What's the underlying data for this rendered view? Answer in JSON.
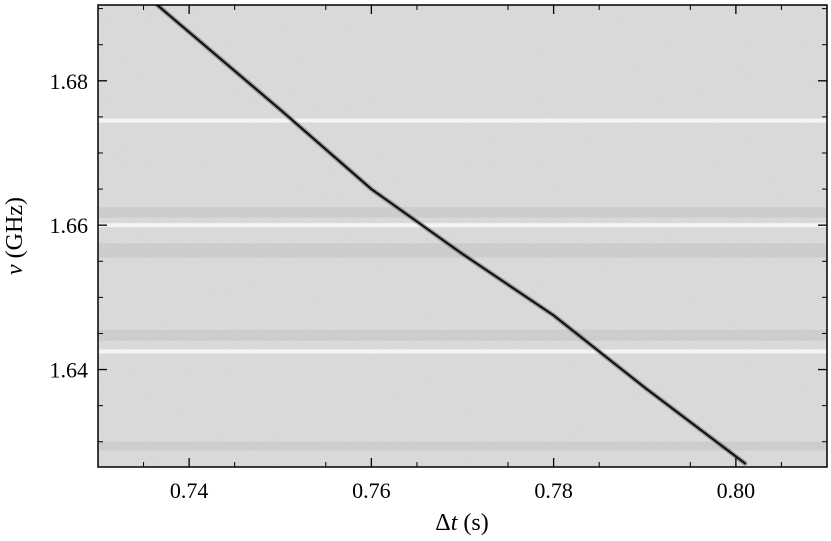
{
  "chart_data": {
    "type": "heatmap",
    "title": "",
    "colormap": "gray_r",
    "background_color": "#dcdcdc",
    "signal_color": "#111111",
    "xlabel": {
      "prefix": "Δ",
      "var": "t",
      "unit": " (s)"
    },
    "ylabel": {
      "var": "ν",
      "unit": " (GHz)"
    },
    "xlim": [
      0.73,
      0.81
    ],
    "ylim": [
      1.6265,
      1.6905
    ],
    "xticks": [
      0.74,
      0.76,
      0.78,
      0.8
    ],
    "xtick_labels": [
      "0.74",
      "0.76",
      "0.78",
      "0.80"
    ],
    "yticks": [
      1.64,
      1.66,
      1.68
    ],
    "ytick_labels": [
      "1.64",
      "1.66",
      "1.68"
    ],
    "dispersion_track": [
      {
        "t": 0.7365,
        "nu": 1.6905
      },
      {
        "t": 0.75,
        "nu": 1.676
      },
      {
        "t": 0.76,
        "nu": 1.665
      },
      {
        "t": 0.77,
        "nu": 1.656
      },
      {
        "t": 0.78,
        "nu": 1.6475
      },
      {
        "t": 0.79,
        "nu": 1.6375
      },
      {
        "t": 0.801,
        "nu": 1.627
      }
    ],
    "flagged_bands_nu": [
      1.66,
      1.6425,
      1.6745
    ],
    "noisy_bands_nu": [
      [
        1.661,
        1.6625
      ],
      [
        1.6555,
        1.6575
      ],
      [
        1.644,
        1.6455
      ],
      [
        1.6288,
        1.63
      ]
    ]
  }
}
